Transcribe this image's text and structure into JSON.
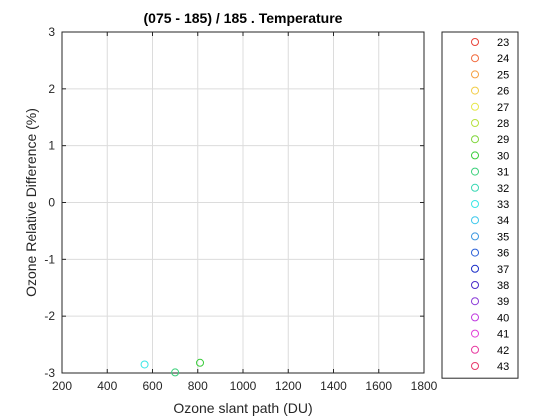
{
  "chart_data": {
    "type": "scatter",
    "title": "(075 - 185) / 185 . Temperature",
    "xlabel": "Ozone slant path (DU)",
    "ylabel": "Ozone Relative Difference (%)",
    "xlim": [
      200,
      1800
    ],
    "ylim": [
      -3,
      3
    ],
    "xticks": [
      "200",
      "400",
      "600",
      "800",
      "1000",
      "1200",
      "1400",
      "1600",
      "1800"
    ],
    "yticks": [
      "-3",
      "-2",
      "-1",
      "0",
      "1",
      "2",
      "3"
    ],
    "grid": true,
    "legend_position": "outside-right",
    "series": [
      {
        "name": "23",
        "color": "#e8433a",
        "points": []
      },
      {
        "name": "24",
        "color": "#f26a3c",
        "points": []
      },
      {
        "name": "25",
        "color": "#f59f40",
        "points": []
      },
      {
        "name": "26",
        "color": "#f2cc45",
        "points": []
      },
      {
        "name": "27",
        "color": "#e6e84a",
        "points": []
      },
      {
        "name": "28",
        "color": "#b7e13f",
        "points": []
      },
      {
        "name": "29",
        "color": "#7fd63a",
        "points": []
      },
      {
        "name": "30",
        "color": "#39cc3a",
        "points": [
          {
            "x": 810,
            "y": -2.82
          }
        ]
      },
      {
        "name": "31",
        "color": "#3ad07a",
        "points": [
          {
            "x": 700,
            "y": -2.99
          }
        ]
      },
      {
        "name": "32",
        "color": "#3ad8b4",
        "points": []
      },
      {
        "name": "33",
        "color": "#3ae6e6",
        "points": [
          {
            "x": 565,
            "y": -2.85
          }
        ]
      },
      {
        "name": "34",
        "color": "#3cc8ec",
        "points": []
      },
      {
        "name": "35",
        "color": "#3a96e0",
        "points": []
      },
      {
        "name": "36",
        "color": "#2a60d8",
        "points": []
      },
      {
        "name": "37",
        "color": "#1a2ec8",
        "points": []
      },
      {
        "name": "38",
        "color": "#4a2ac8",
        "points": []
      },
      {
        "name": "39",
        "color": "#8a3ad8",
        "points": []
      },
      {
        "name": "40",
        "color": "#c03ae0",
        "points": []
      },
      {
        "name": "41",
        "color": "#e23ad8",
        "points": []
      },
      {
        "name": "42",
        "color": "#e83aa0",
        "points": []
      },
      {
        "name": "43",
        "color": "#e83a6a",
        "points": []
      }
    ]
  }
}
